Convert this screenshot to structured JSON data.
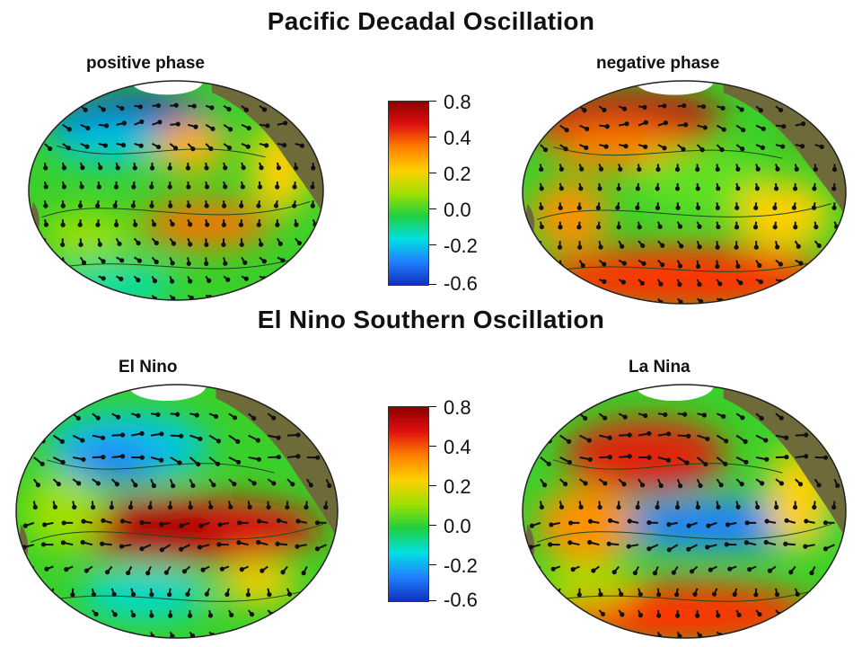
{
  "pdo": {
    "title": "Pacific Decadal Oscillation",
    "left_label": "positive phase",
    "right_label": "negative phase"
  },
  "enso": {
    "title": "El Nino Southern Oscillation",
    "left_label": "El Nino",
    "right_label": "La Nina"
  },
  "colorbar": {
    "ticks": [
      "0.8",
      "0.4",
      "0.2",
      "0.0",
      "-0.2",
      "-0.6"
    ],
    "colors": [
      "#8b0000",
      "#e01010",
      "#ff8000",
      "#ffd000",
      "#a0e000",
      "#20d040",
      "#00e0e0",
      "#2080ff",
      "#1030c0"
    ]
  },
  "colors": {
    "land": "#6e6a3a",
    "ice": "#ffffff",
    "arrow": "#111111"
  }
}
